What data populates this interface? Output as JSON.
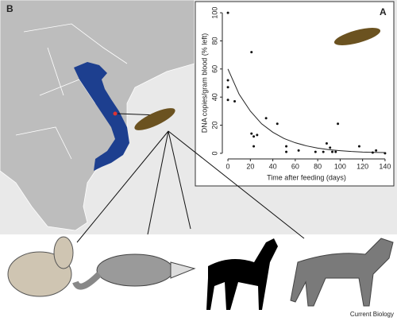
{
  "figure": {
    "panel_b": "B",
    "credit": "Current Biology"
  },
  "chart_data": {
    "type": "scatter",
    "panel_label": "A",
    "xlabel": "Time after feeding (days)",
    "ylabel": "DNA copies/gram blood (% left)",
    "x": [
      0,
      0,
      0,
      0,
      6,
      21,
      21,
      23,
      23,
      26,
      34,
      44,
      52,
      52,
      63,
      78,
      85,
      88,
      91,
      93,
      96,
      98,
      117,
      129,
      132,
      140
    ],
    "values": [
      100,
      52,
      47,
      38,
      37,
      72,
      14,
      12,
      5,
      13,
      25,
      21,
      5,
      1,
      2,
      1,
      1,
      7,
      4,
      1,
      1,
      21,
      5,
      0.5,
      2,
      0
    ],
    "color": "#111111",
    "curve": {
      "x": [
        0,
        10,
        20,
        30,
        40,
        50,
        60,
        70,
        80,
        90,
        100,
        110,
        120,
        130,
        140
      ],
      "values": [
        60,
        42,
        30,
        21,
        15,
        10.5,
        7.5,
        5.3,
        3.7,
        2.6,
        1.9,
        1.3,
        0.9,
        0.7,
        0.5
      ],
      "color": "#222222"
    },
    "xlim": [
      -5,
      145
    ],
    "ylim": [
      -4,
      104
    ],
    "xticks": [
      0,
      20,
      40,
      60,
      80,
      100,
      120,
      140
    ],
    "yticks": [
      0,
      20,
      40,
      60,
      80,
      100
    ]
  }
}
